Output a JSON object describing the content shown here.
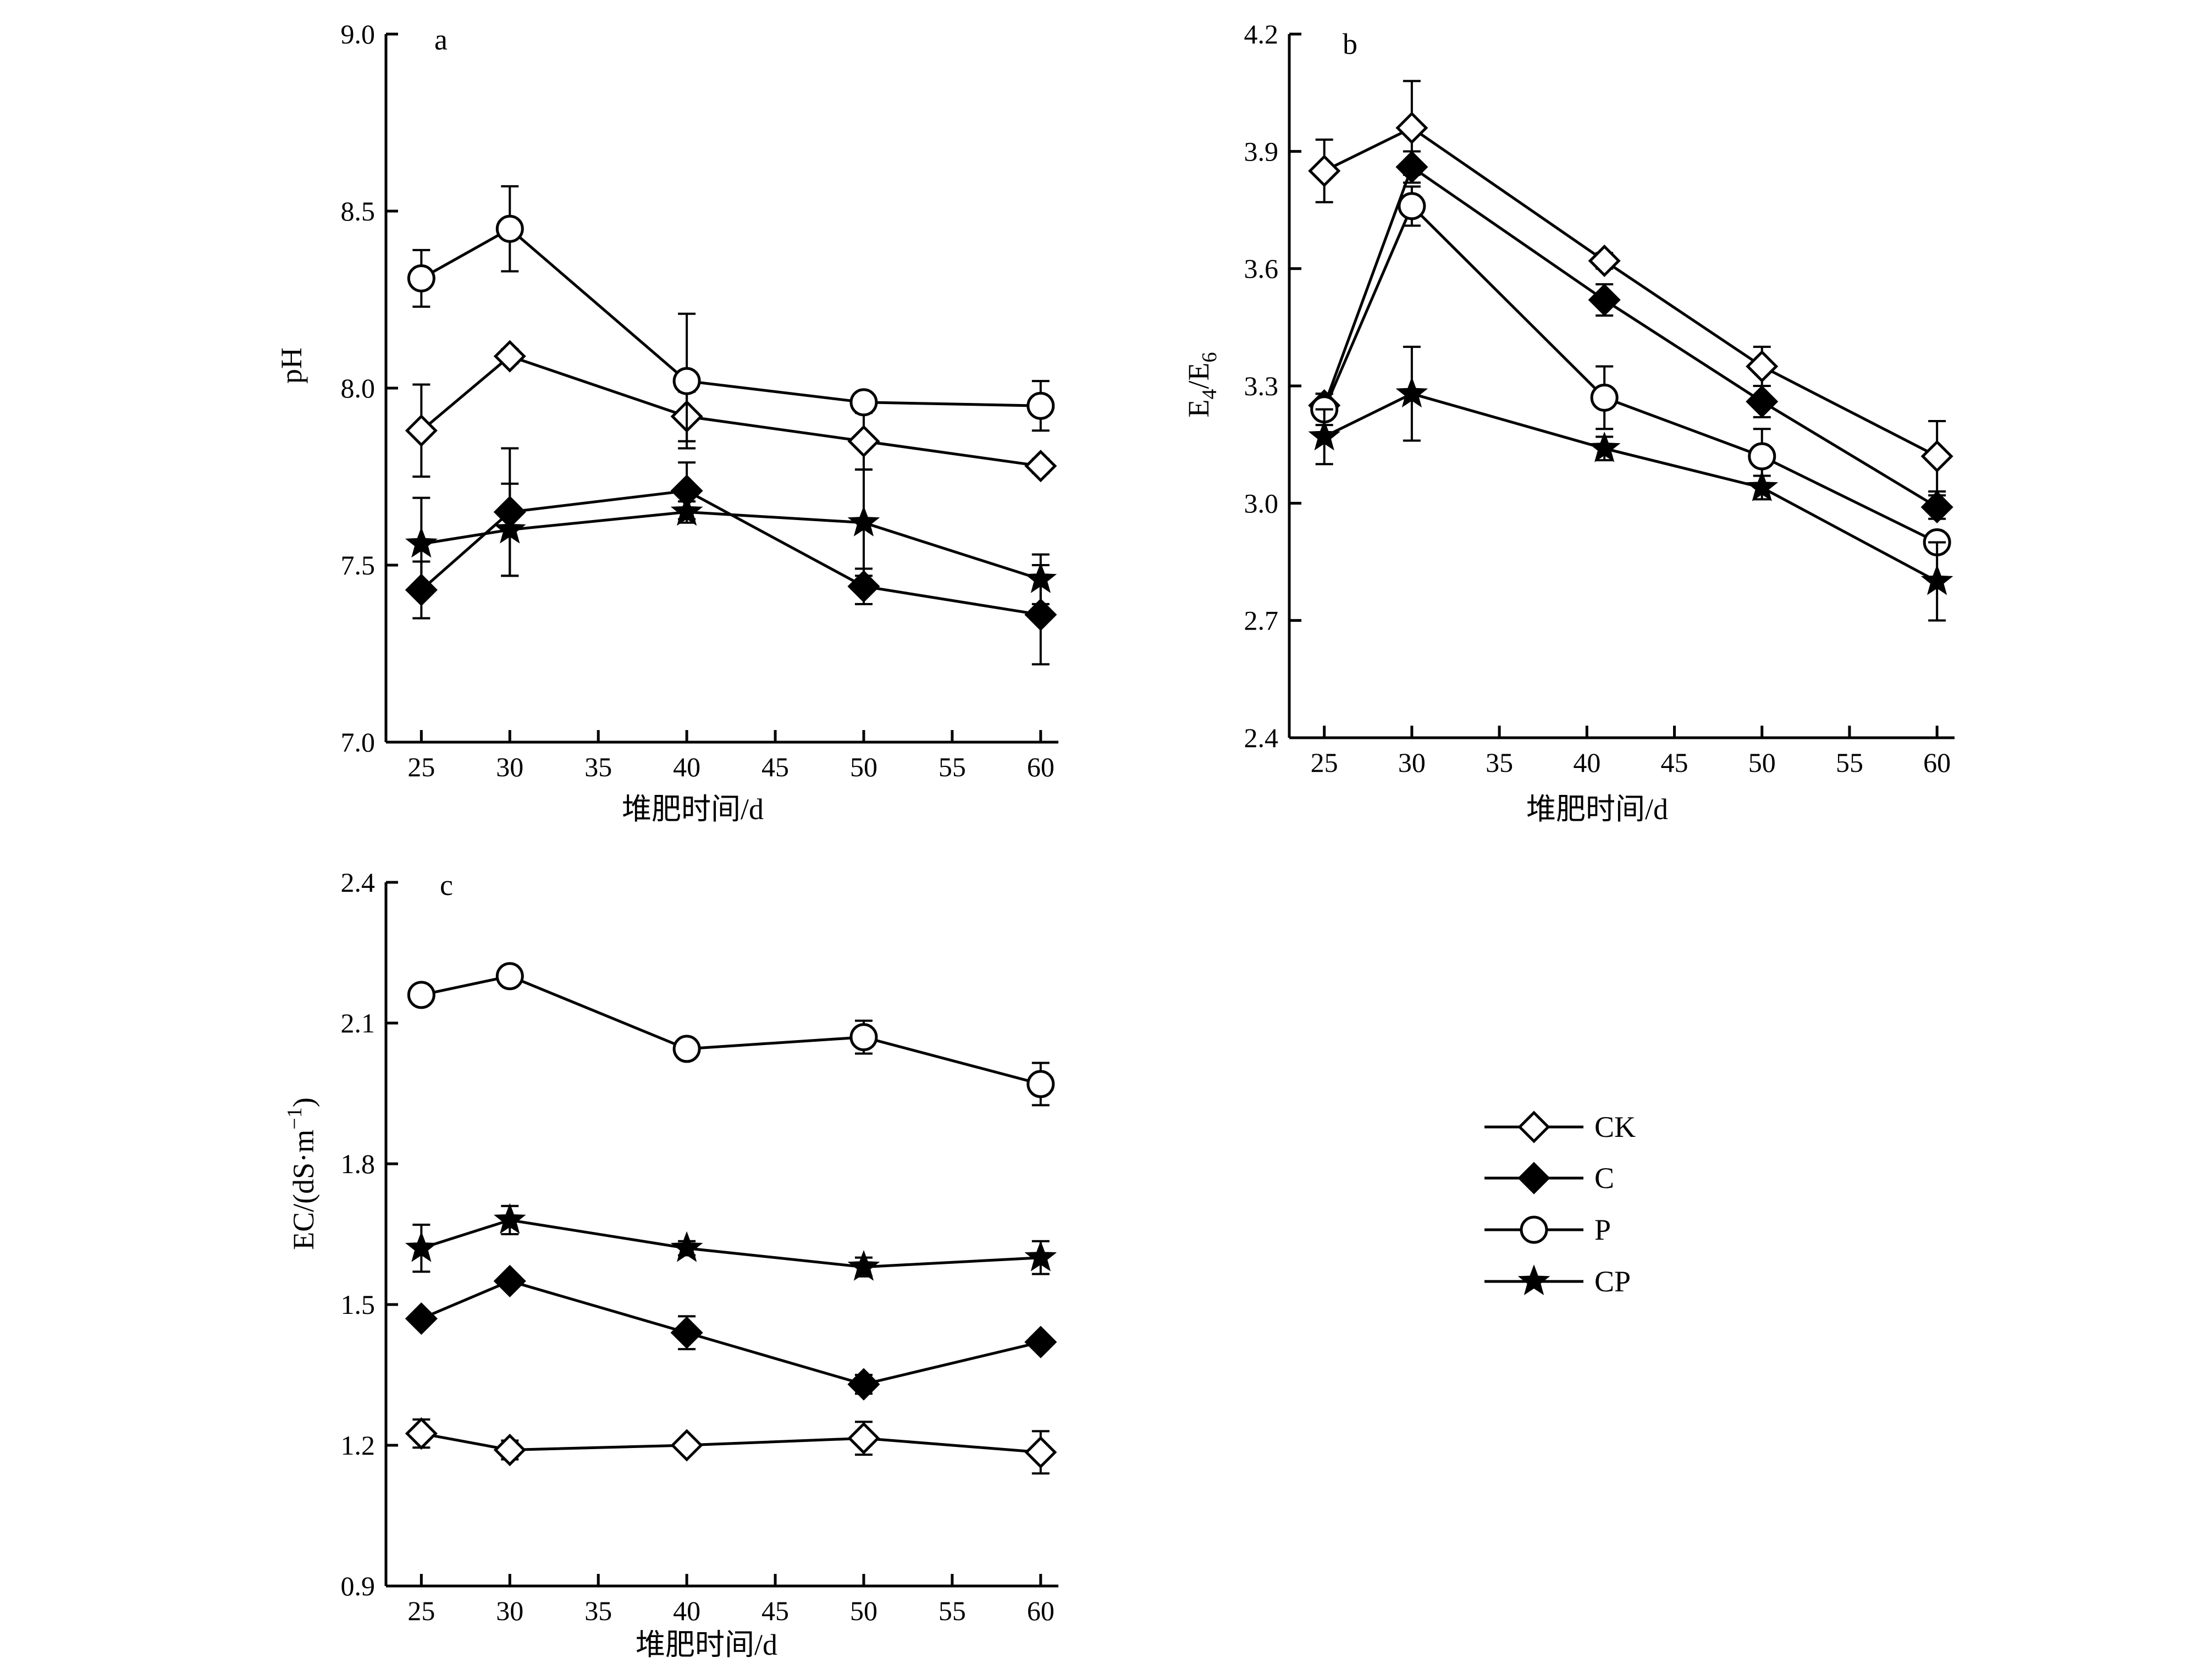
{
  "chart_data": [
    {
      "id": "a",
      "type": "line",
      "panel_label": "a",
      "xlabel": "堆肥时间/d",
      "ylabel": "pH",
      "xlim": [
        23,
        61
      ],
      "ylim": [
        7.0,
        9.0
      ],
      "xticks": [
        25,
        30,
        35,
        40,
        45,
        50,
        55,
        60
      ],
      "yticks": [
        7.0,
        7.5,
        8.0,
        8.5,
        9.0
      ],
      "ytick_labels": [
        "7.0",
        "7.5",
        "8.0",
        "8.5",
        "9.0"
      ],
      "x": [
        25,
        30,
        40,
        50,
        60
      ],
      "series": [
        {
          "name": "CK",
          "marker": "diamond-open",
          "values": [
            7.88,
            8.09,
            7.92,
            7.85,
            7.78
          ],
          "err": [
            0.13,
            0.02,
            0.07,
            0.08,
            0.02
          ]
        },
        {
          "name": "C",
          "marker": "diamond-filled",
          "values": [
            7.43,
            7.65,
            7.71,
            7.44,
            7.36
          ],
          "err": [
            0.08,
            0.18,
            0.08,
            0.05,
            0.14
          ]
        },
        {
          "name": "P",
          "marker": "circle-open",
          "values": [
            8.31,
            8.45,
            8.02,
            7.96,
            7.95
          ],
          "err": [
            0.08,
            0.12,
            0.19,
            0.02,
            0.07
          ]
        },
        {
          "name": "CP",
          "marker": "star-filled",
          "values": [
            7.56,
            7.6,
            7.65,
            7.62,
            7.46
          ],
          "err": [
            0.13,
            0.13,
            0.03,
            0.15,
            0.07
          ]
        }
      ]
    },
    {
      "id": "b",
      "type": "line",
      "panel_label": "b",
      "xlabel": "堆肥时间/d",
      "ylabel_main": "E",
      "ylabel_sub1": "4",
      "ylabel_slash": "/E",
      "ylabel_sub2": "6",
      "xlim": [
        23,
        61
      ],
      "ylim": [
        2.4,
        4.2
      ],
      "xticks": [
        25,
        30,
        35,
        40,
        45,
        50,
        55,
        60
      ],
      "yticks": [
        2.4,
        2.7,
        3.0,
        3.3,
        3.6,
        3.9,
        4.2
      ],
      "ytick_labels": [
        "2.4",
        "2.7",
        "3.0",
        "3.3",
        "3.6",
        "3.9",
        "4.2"
      ],
      "x": [
        25,
        30,
        41,
        50,
        60
      ],
      "series": [
        {
          "name": "CK",
          "marker": "diamond-open",
          "values": [
            3.85,
            3.96,
            3.62,
            3.35,
            3.12
          ],
          "err": [
            0.08,
            0.12,
            0.02,
            0.05,
            0.09
          ]
        },
        {
          "name": "C",
          "marker": "diamond-filled",
          "values": [
            3.25,
            3.86,
            3.52,
            3.26,
            2.99
          ],
          "err": [
            0.03,
            0.04,
            0.04,
            0.04,
            0.03
          ]
        },
        {
          "name": "P",
          "marker": "circle-open",
          "values": [
            3.24,
            3.76,
            3.27,
            3.12,
            2.9
          ],
          "err": [
            0.04,
            0.05,
            0.08,
            0.07,
            0.02
          ]
        },
        {
          "name": "CP",
          "marker": "star-filled",
          "values": [
            3.17,
            3.28,
            3.14,
            3.04,
            2.8
          ],
          "err": [
            0.07,
            0.12,
            0.03,
            0.03,
            0.1
          ]
        }
      ]
    },
    {
      "id": "c",
      "type": "line",
      "panel_label": "c",
      "xlabel": "堆肥时间/d",
      "ylabel_main": "EC/(dS·m",
      "ylabel_sup": "−1",
      "ylabel_close": ")",
      "xlim": [
        23,
        61
      ],
      "ylim": [
        0.9,
        2.4
      ],
      "xticks": [
        25,
        30,
        35,
        40,
        45,
        50,
        55,
        60
      ],
      "yticks": [
        0.9,
        1.2,
        1.5,
        1.8,
        2.1,
        2.4
      ],
      "ytick_labels": [
        "0.9",
        "1.2",
        "1.5",
        "1.8",
        "2.1",
        "2.4"
      ],
      "x": [
        25,
        30,
        40,
        50,
        60
      ],
      "series": [
        {
          "name": "CK",
          "marker": "diamond-open",
          "values": [
            1.225,
            1.19,
            1.2,
            1.215,
            1.185
          ],
          "err": [
            0.03,
            0.02,
            0.01,
            0.035,
            0.045
          ]
        },
        {
          "name": "C",
          "marker": "diamond-filled",
          "values": [
            1.47,
            1.55,
            1.44,
            1.33,
            1.42
          ],
          "err": [
            0.01,
            0.01,
            0.035,
            0.02,
            0.01
          ]
        },
        {
          "name": "P",
          "marker": "circle-open",
          "values": [
            2.16,
            2.2,
            2.045,
            2.07,
            1.97
          ],
          "err": [
            0.01,
            0.01,
            0.01,
            0.035,
            0.045
          ]
        },
        {
          "name": "CP",
          "marker": "star-filled",
          "values": [
            1.62,
            1.68,
            1.62,
            1.58,
            1.6
          ],
          "err": [
            0.05,
            0.03,
            0.015,
            0.02,
            0.035
          ]
        }
      ]
    }
  ],
  "legend": [
    {
      "name": "CK",
      "marker": "diamond-open"
    },
    {
      "name": "C",
      "marker": "diamond-filled"
    },
    {
      "name": "P",
      "marker": "circle-open"
    },
    {
      "name": "CP",
      "marker": "star-filled"
    }
  ]
}
